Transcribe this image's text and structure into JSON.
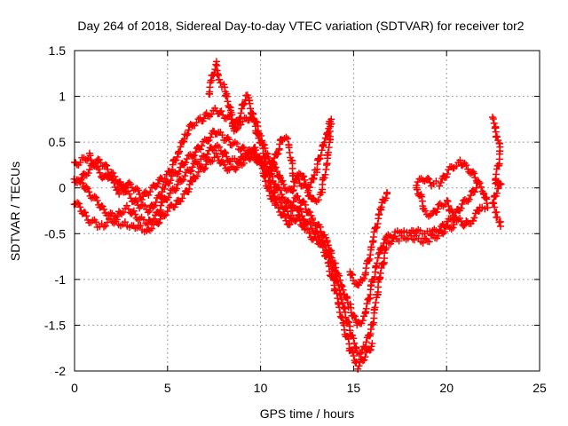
{
  "chart_data": {
    "type": "scatter",
    "title": "Day 264 of 2018, Sidereal Day-to-day VTEC variation (SDTVAR) for receiver tor2",
    "xlabel": "GPS time / hours",
    "ylabel": "SDTVAR / TECUs",
    "xlim": [
      0,
      25
    ],
    "ylim": [
      -2,
      1.5
    ],
    "xticks": [
      "0",
      "5",
      "10",
      "15",
      "20",
      "25"
    ],
    "yticks": [
      "1.5",
      "1",
      "0.5",
      "0",
      "-0.5",
      "-1",
      "-1.5",
      "-2"
    ],
    "grid": true,
    "marker": "plus",
    "color": "#ff0000",
    "series": [
      {
        "points": [
          [
            0,
            0.25
          ],
          [
            0.4,
            0.3
          ],
          [
            0.8,
            0.35
          ],
          [
            1.2,
            0.2
          ],
          [
            1.6,
            0.1
          ],
          [
            2,
            0.15
          ],
          [
            2.4,
            0.05
          ],
          [
            2.8,
            -0.05
          ],
          [
            3.2,
            -0.15
          ],
          [
            3.6,
            -0.2
          ],
          [
            4,
            -0.25
          ],
          [
            4.4,
            -0.15
          ],
          [
            4.8,
            0
          ],
          [
            5.2,
            0.1
          ],
          [
            5.6,
            0.2
          ],
          [
            6,
            0.3
          ],
          [
            6.4,
            0.38
          ],
          [
            6.8,
            0.45
          ],
          [
            7.2,
            0.55
          ],
          [
            7.6,
            0.62
          ],
          [
            8,
            0.55
          ],
          [
            8.4,
            0.5
          ],
          [
            8.8,
            0.45
          ],
          [
            9.2,
            0.4
          ],
          [
            9.6,
            0.35
          ],
          [
            10,
            0.3
          ],
          [
            10.4,
            0.2
          ],
          [
            10.8,
            0.05
          ],
          [
            11.2,
            -0.1
          ],
          [
            11.6,
            -0.2
          ],
          [
            12,
            -0.1
          ],
          [
            12.4,
            -0.2
          ],
          [
            12.8,
            -0.35
          ],
          [
            13.2,
            -0.45
          ],
          [
            13.6,
            -0.6
          ],
          [
            14,
            -0.85
          ],
          [
            14.4,
            -1.1
          ],
          [
            14.8,
            -1.3
          ],
          [
            15.2,
            -1.5
          ],
          [
            15.6,
            -1.4
          ],
          [
            16,
            -1.05
          ],
          [
            16.4,
            -0.7
          ],
          [
            16.8,
            -0.55
          ],
          [
            17.2,
            -0.5
          ],
          [
            17.6,
            -0.5
          ],
          [
            18,
            -0.5
          ],
          [
            18.4,
            -0.48
          ],
          [
            18.8,
            -0.5
          ],
          [
            19.2,
            -0.5
          ],
          [
            19.6,
            -0.45
          ],
          [
            20,
            -0.4
          ],
          [
            20.4,
            -0.3
          ],
          [
            20.8,
            -0.2
          ],
          [
            21.2,
            -0.1
          ],
          [
            21.6,
            0
          ]
        ]
      },
      {
        "points": [
          [
            0,
            0.1
          ],
          [
            0.4,
            0.05
          ],
          [
            0.8,
            -0.05
          ],
          [
            1.2,
            -0.15
          ],
          [
            1.6,
            -0.25
          ],
          [
            2,
            -0.3
          ],
          [
            2.4,
            -0.28
          ],
          [
            2.8,
            -0.22
          ],
          [
            3.2,
            -0.28
          ],
          [
            3.6,
            -0.35
          ],
          [
            4,
            -0.38
          ],
          [
            4.4,
            -0.3
          ],
          [
            4.8,
            -0.15
          ],
          [
            5.2,
            -0.05
          ],
          [
            5.6,
            0.05
          ],
          [
            6,
            0.15
          ],
          [
            6.4,
            0.25
          ],
          [
            6.8,
            0.3
          ],
          [
            7.2,
            0.4
          ],
          [
            7.6,
            0.45
          ],
          [
            8,
            0.38
          ],
          [
            8.4,
            0.3
          ],
          [
            8.8,
            0.28
          ],
          [
            9.2,
            0.35
          ],
          [
            9.6,
            0.45
          ],
          [
            10,
            0.3
          ],
          [
            10.4,
            0.1
          ],
          [
            10.8,
            -0.1
          ],
          [
            11.2,
            -0.2
          ],
          [
            11.6,
            -0.3
          ],
          [
            12,
            -0.2
          ],
          [
            12.4,
            -0.35
          ],
          [
            12.8,
            -0.45
          ],
          [
            13.2,
            -0.55
          ],
          [
            13.6,
            -0.7
          ],
          [
            14,
            -0.95
          ],
          [
            14.4,
            -1.25
          ],
          [
            14.8,
            -1.55
          ],
          [
            15.2,
            -1.8
          ],
          [
            15.6,
            -1.75
          ],
          [
            16,
            -1.5
          ],
          [
            16.4,
            -1.0
          ],
          [
            16.8,
            -0.6
          ],
          [
            17.2,
            -0.55
          ],
          [
            17.6,
            -0.55
          ],
          [
            18,
            -0.52
          ],
          [
            18.4,
            -0.55
          ],
          [
            18.8,
            -0.58
          ],
          [
            19.2,
            -0.55
          ],
          [
            19.6,
            -0.5
          ],
          [
            20,
            -0.45
          ],
          [
            20.4,
            -0.4
          ]
        ]
      },
      {
        "points": [
          [
            0,
            -0.15
          ],
          [
            0.4,
            -0.25
          ],
          [
            0.8,
            -0.35
          ],
          [
            1.2,
            -0.4
          ],
          [
            1.6,
            -0.4
          ],
          [
            2,
            -0.35
          ],
          [
            2.4,
            -0.38
          ],
          [
            2.8,
            -0.4
          ],
          [
            3.2,
            -0.4
          ],
          [
            3.6,
            -0.45
          ],
          [
            4,
            -0.45
          ],
          [
            4.4,
            -0.38
          ],
          [
            4.8,
            -0.3
          ],
          [
            5.2,
            -0.2
          ],
          [
            5.6,
            -0.15
          ],
          [
            6,
            -0.05
          ],
          [
            6.4,
            0.1
          ],
          [
            6.8,
            0.2
          ],
          [
            7.2,
            0.28
          ],
          [
            7.6,
            0.35
          ],
          [
            8,
            0.25
          ],
          [
            8.4,
            0.2
          ],
          [
            8.8,
            0.25
          ],
          [
            9.2,
            0.3
          ],
          [
            9.6,
            0.38
          ],
          [
            10,
            0.25
          ],
          [
            10.4,
            0
          ],
          [
            10.8,
            -0.2
          ],
          [
            11.2,
            -0.3
          ],
          [
            11.6,
            -0.4
          ],
          [
            12,
            -0.3
          ],
          [
            12.4,
            -0.45
          ],
          [
            12.8,
            -0.55
          ],
          [
            13.2,
            -0.6
          ],
          [
            13.6,
            -0.8
          ],
          [
            14,
            -1.1
          ],
          [
            14.4,
            -1.45
          ],
          [
            14.8,
            -1.75
          ],
          [
            15.2,
            -1.95
          ],
          [
            15.6,
            -1.85
          ],
          [
            16,
            -1.7
          ]
        ]
      },
      {
        "points": [
          [
            0,
            0.05
          ],
          [
            0.4,
            0.1
          ],
          [
            0.8,
            0.2
          ],
          [
            1.2,
            0.3
          ],
          [
            1.6,
            0.25
          ],
          [
            2,
            0.1
          ],
          [
            2.4,
            -0.05
          ],
          [
            2.8,
            0.05
          ],
          [
            3.2,
            0.0
          ],
          [
            3.6,
            -0.1
          ],
          [
            4,
            -0.05
          ],
          [
            4.4,
            0.05
          ],
          [
            4.8,
            0.1
          ],
          [
            5.2,
            0.2
          ],
          [
            5.6,
            0.4
          ],
          [
            6,
            0.6
          ],
          [
            6.4,
            0.7
          ],
          [
            6.8,
            0.75
          ],
          [
            7.2,
            0.8
          ],
          [
            7.6,
            0.85
          ],
          [
            8,
            0.8
          ],
          [
            8.4,
            0.75
          ],
          [
            8.8,
            0.7
          ],
          [
            9.2,
            0.75
          ],
          [
            9.6,
            0.8
          ],
          [
            10,
            0.55
          ],
          [
            10.4,
            0.35
          ],
          [
            10.8,
            0.2
          ],
          [
            11.2,
            0.05
          ],
          [
            11.6,
            -0.05
          ],
          [
            12,
            0.1
          ],
          [
            12.4,
            0.0
          ],
          [
            12.8,
            -0.15
          ],
          [
            13.2,
            -0.1
          ],
          [
            13.6,
            0.3
          ],
          [
            13.8,
            0.7
          ]
        ]
      },
      {
        "points": [
          [
            7.2,
            1.0
          ],
          [
            7.4,
            1.2
          ],
          [
            7.6,
            1.35
          ],
          [
            7.8,
            1.15
          ],
          [
            8,
            1.1
          ],
          [
            8.2,
            1.0
          ],
          [
            8.4,
            0.8
          ],
          [
            8.6,
            0.6
          ],
          [
            8.8,
            0.7
          ],
          [
            9,
            0.85
          ],
          [
            9.2,
            1.0
          ],
          [
            9.4,
            0.95
          ],
          [
            9.6,
            0.75
          ],
          [
            9.8,
            0.6
          ],
          [
            10,
            0.5
          ],
          [
            10.2,
            0.35
          ],
          [
            10.5,
            0.15
          ],
          [
            11,
            0.45
          ],
          [
            11.2,
            0.55
          ],
          [
            11.5,
            0.5
          ],
          [
            11.8,
            0.1
          ],
          [
            12.2,
            0.15
          ],
          [
            12.6,
            0.0
          ],
          [
            13,
            0.2
          ],
          [
            13.4,
            0.5
          ],
          [
            13.6,
            0.6
          ],
          [
            13.8,
            0.75
          ]
        ]
      },
      {
        "points": [
          [
            14.8,
            -0.9
          ],
          [
            15,
            -1.0
          ],
          [
            15.2,
            -1.05
          ],
          [
            15.4,
            -1.0
          ],
          [
            15.6,
            -0.95
          ],
          [
            15.8,
            -0.8
          ],
          [
            16,
            -0.6
          ],
          [
            16.2,
            -0.45
          ],
          [
            16.4,
            -0.25
          ],
          [
            16.6,
            -0.15
          ],
          [
            16.8,
            -0.05
          ]
        ]
      },
      {
        "points": [
          [
            18.4,
            0.05
          ],
          [
            18.8,
            0.1
          ],
          [
            19.2,
            0.05
          ],
          [
            19.6,
            0.05
          ],
          [
            20,
            0.15
          ],
          [
            20.4,
            0.25
          ],
          [
            20.8,
            0.28
          ],
          [
            21.2,
            0.2
          ],
          [
            21.6,
            0.1
          ],
          [
            22,
            -0.05
          ],
          [
            22.2,
            -0.2
          ],
          [
            21.8,
            -0.2
          ],
          [
            21.4,
            -0.35
          ],
          [
            21,
            -0.4
          ],
          [
            20.6,
            -0.35
          ],
          [
            20.2,
            -0.25
          ],
          [
            20,
            -0.15
          ],
          [
            19.6,
            -0.2
          ],
          [
            19.2,
            -0.3
          ],
          [
            18.8,
            -0.25
          ],
          [
            18.6,
            -0.1
          ],
          [
            18.4,
            0.0
          ]
        ]
      },
      {
        "points": [
          [
            22.5,
            0.75
          ],
          [
            22.6,
            0.65
          ],
          [
            22.7,
            0.55
          ],
          [
            22.8,
            0.48
          ],
          [
            22.9,
            0.4
          ],
          [
            22.6,
            0.05
          ],
          [
            22.8,
            0.0
          ],
          [
            22.9,
            0.05
          ],
          [
            22.5,
            -0.15
          ],
          [
            22.6,
            -0.25
          ],
          [
            22.7,
            -0.3
          ],
          [
            22.8,
            -0.35
          ],
          [
            22.9,
            -0.42
          ]
        ]
      }
    ]
  }
}
